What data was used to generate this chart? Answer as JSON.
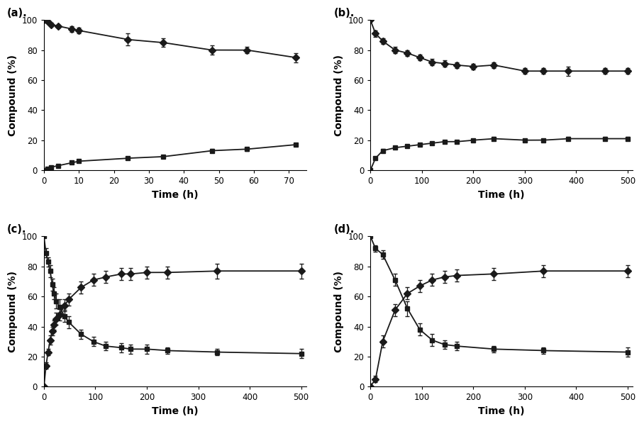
{
  "panels": [
    {
      "label": "(a).",
      "xlim": [
        0,
        75
      ],
      "ylim": [
        0,
        100
      ],
      "xticks": [
        0,
        10,
        20,
        30,
        40,
        50,
        60,
        70
      ],
      "yticks": [
        0,
        20,
        40,
        60,
        80,
        100
      ],
      "diamond": {
        "x": [
          0,
          1,
          2,
          4,
          8,
          10,
          24,
          34,
          48,
          58,
          72
        ],
        "y": [
          100,
          99,
          97,
          96,
          94,
          93,
          87,
          85,
          80,
          80,
          75
        ],
        "yerr": [
          0.5,
          1,
          1,
          1,
          2,
          2,
          4,
          3,
          3,
          2,
          3
        ]
      },
      "square": {
        "x": [
          0,
          1,
          2,
          4,
          8,
          10,
          24,
          34,
          48,
          58,
          72
        ],
        "y": [
          0,
          1,
          2,
          3,
          5,
          6,
          8,
          9,
          13,
          14,
          17
        ],
        "yerr": [
          0.3,
          0.5,
          0.5,
          0.5,
          0.5,
          0.5,
          1,
          1,
          1,
          1,
          1
        ]
      }
    },
    {
      "label": "(b).",
      "xlim": [
        0,
        510
      ],
      "ylim": [
        0,
        100
      ],
      "xticks": [
        0,
        100,
        200,
        300,
        400,
        500
      ],
      "yticks": [
        0,
        20,
        40,
        60,
        80,
        100
      ],
      "diamond": {
        "x": [
          0,
          10,
          24,
          48,
          72,
          96,
          120,
          144,
          168,
          200,
          240,
          300,
          336,
          384,
          456,
          500
        ],
        "y": [
          100,
          91,
          86,
          80,
          78,
          75,
          72,
          71,
          70,
          69,
          70,
          66,
          66,
          66,
          66,
          66
        ],
        "yerr": [
          0.5,
          2,
          2,
          2,
          2,
          2,
          2,
          2,
          2,
          2,
          2,
          2,
          2,
          3,
          2,
          2
        ]
      },
      "square": {
        "x": [
          0,
          10,
          24,
          48,
          72,
          96,
          120,
          144,
          168,
          200,
          240,
          300,
          336,
          384,
          456,
          500
        ],
        "y": [
          0,
          8,
          13,
          15,
          16,
          17,
          18,
          19,
          19,
          20,
          21,
          20,
          20,
          21,
          21,
          21
        ],
        "yerr": [
          0.3,
          1,
          1,
          1,
          1,
          1,
          1,
          1,
          1,
          1,
          1,
          1,
          1,
          1,
          1,
          1
        ]
      }
    },
    {
      "label": "(c).",
      "xlim": [
        0,
        510
      ],
      "ylim": [
        0,
        100
      ],
      "xticks": [
        0,
        100,
        200,
        300,
        400,
        500
      ],
      "yticks": [
        0,
        20,
        40,
        60,
        80,
        100
      ],
      "diamond": {
        "x": [
          0,
          4,
          8,
          12,
          16,
          20,
          24,
          30,
          40,
          48,
          72,
          96,
          120,
          150,
          168,
          200,
          240,
          336,
          500
        ],
        "y": [
          0,
          14,
          23,
          31,
          37,
          41,
          45,
          48,
          54,
          58,
          66,
          71,
          73,
          75,
          75,
          76,
          76,
          77,
          77
        ],
        "yerr": [
          0.3,
          2,
          2,
          3,
          3,
          3,
          4,
          4,
          4,
          4,
          4,
          4,
          4,
          4,
          4,
          4,
          4,
          5,
          5
        ]
      },
      "square": {
        "x": [
          0,
          4,
          8,
          12,
          16,
          20,
          24,
          30,
          40,
          48,
          72,
          96,
          120,
          150,
          168,
          200,
          240,
          336,
          500
        ],
        "y": [
          100,
          89,
          83,
          77,
          68,
          62,
          57,
          53,
          47,
          43,
          35,
          30,
          27,
          26,
          25,
          25,
          24,
          23,
          22
        ],
        "yerr": [
          0.5,
          3,
          3,
          4,
          4,
          4,
          5,
          5,
          4,
          4,
          3,
          3,
          3,
          3,
          3,
          3,
          2,
          2,
          3
        ]
      }
    },
    {
      "label": "(d).",
      "xlim": [
        0,
        510
      ],
      "ylim": [
        0,
        100
      ],
      "xticks": [
        0,
        100,
        200,
        300,
        400,
        500
      ],
      "yticks": [
        0,
        20,
        40,
        60,
        80,
        100
      ],
      "diamond": {
        "x": [
          0,
          10,
          24,
          48,
          72,
          96,
          120,
          144,
          168,
          240,
          336,
          500
        ],
        "y": [
          0,
          5,
          30,
          51,
          62,
          67,
          71,
          73,
          74,
          75,
          77,
          77
        ],
        "yerr": [
          0.3,
          2,
          4,
          4,
          4,
          4,
          4,
          4,
          4,
          4,
          4,
          4
        ]
      },
      "square": {
        "x": [
          0,
          10,
          24,
          48,
          72,
          96,
          120,
          144,
          168,
          240,
          336,
          500
        ],
        "y": [
          100,
          92,
          88,
          71,
          52,
          38,
          31,
          28,
          27,
          25,
          24,
          23
        ],
        "yerr": [
          0.5,
          2,
          3,
          4,
          5,
          4,
          4,
          3,
          3,
          2,
          2,
          3
        ]
      }
    }
  ],
  "xlabel": "Time (h)",
  "ylabel": "Compound (%)",
  "line_color": "#1a1a1a",
  "marker_diamond": "D",
  "marker_square": "s",
  "markersize": 5,
  "linewidth": 1.3,
  "capsize": 2.5,
  "elinewidth": 0.9
}
